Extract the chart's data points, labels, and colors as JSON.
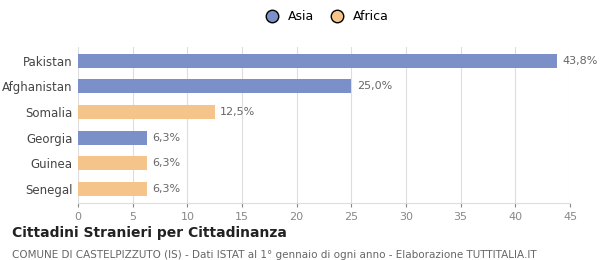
{
  "categories": [
    "Pakistan",
    "Afghanistan",
    "Somalia",
    "Georgia",
    "Guinea",
    "Senegal"
  ],
  "values": [
    43.8,
    25.0,
    12.5,
    6.3,
    6.3,
    6.3
  ],
  "labels": [
    "43,8%",
    "25,0%",
    "12,5%",
    "6,3%",
    "6,3%",
    "6,3%"
  ],
  "colors": [
    "#7b8fc8",
    "#7b8fc8",
    "#f5c48a",
    "#7b8fc8",
    "#f5c48a",
    "#f5c48a"
  ],
  "legend_labels": [
    "Asia",
    "Africa"
  ],
  "legend_colors": [
    "#7b8fc8",
    "#f5c48a"
  ],
  "xlim": [
    0,
    45
  ],
  "xticks": [
    0,
    5,
    10,
    15,
    20,
    25,
    30,
    35,
    40,
    45
  ],
  "title": "Cittadini Stranieri per Cittadinanza",
  "subtitle": "COMUNE DI CASTELPIZZUTO (IS) - Dati ISTAT al 1° gennaio di ogni anno - Elaborazione TUTTITALIA.IT",
  "title_fontsize": 10,
  "subtitle_fontsize": 7.5,
  "bar_height": 0.55,
  "background_color": "#ffffff",
  "grid_color": "#dddddd",
  "label_fontsize": 8,
  "tick_color": "#888888",
  "label_color": "#666666",
  "ylabel_color": "#444444"
}
